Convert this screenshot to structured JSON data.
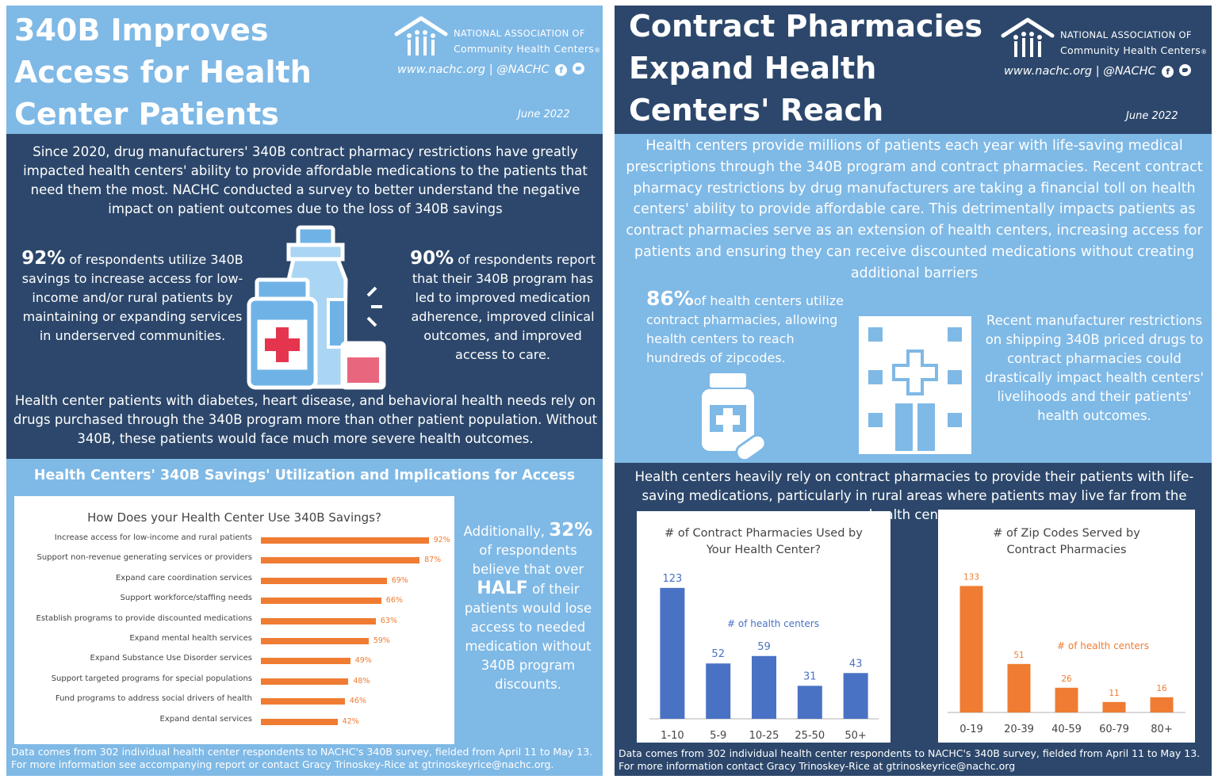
{
  "left": {
    "title_lines": [
      "340B Improves",
      "Access for Health",
      "Center Patients"
    ],
    "logo": {
      "line1": "NATIONAL ASSOCIATION OF",
      "line2": "Community Health Centers",
      "reg": "®"
    },
    "web": "www.nachc.org | @NACHC",
    "date": "June 2022",
    "intro": "Since 2020, drug manufacturers' 340B contract pharmacy restrictions have greatly impacted health centers' ability to provide affordable medications to the patients that need them the most. NACHC conducted a survey to better understand the negative impact on patient outcomes due to the loss of 340B savings",
    "stat1": {
      "num": "92%",
      "text": " of respondents utilize 340B savings to increase access for low-income and/or rural patients by maintaining or expanding services in underserved communities."
    },
    "stat2": {
      "num": "90%",
      "text": " of respondents report that their 340B program has led to improved medication adherence, improved clinical outcomes, and improved access to care."
    },
    "para2": "Health center patients with diabetes, heart disease, and behavioral health needs rely on drugs purchased through the 340B program more than other patient population.  Without 340B, these patients would face much more severe health outcomes.",
    "section_title": "Health Centers' 340B Savings' Utilization and Implications for Access",
    "side": {
      "pre": "Additionally, ",
      "num": "32%",
      "mid": " of respondents believe that over ",
      "half": "HALF",
      "post": " of their patients would lose access to needed medication without 340B program discounts."
    },
    "footnote": "Data comes from 302 individual health center respondents to NACHC's 340B survey, fielded from April 11 to May 13.  For more information see accompanying report or contact Gracy Trinoskey-Rice at gtrinoskeyrice@nachc.org."
  },
  "right": {
    "title_lines": [
      "Contract Pharmacies",
      "Expand Health",
      "Centers' Reach"
    ],
    "logo": {
      "line1": "NATIONAL ASSOCIATION OF",
      "line2": "Community Health Centers",
      "reg": "®"
    },
    "web": "www.nachc.org | @NACHC",
    "date": "June 2022",
    "intro": "Health centers provide millions of patients each year with life-saving medical prescriptions through the 340B program and contract pharmacies. Recent contract pharmacy restrictions by drug manufacturers are taking a financial toll on health centers' ability to provide affordable care.  This detrimentally impacts patients as contract pharmacies serve as an extension of health centers, increasing access for patients and ensuring they can receive discounted medications without creating additional barriers",
    "stat": {
      "num": "86%",
      "text": "of health centers utilize contract pharmacies, allowing health centers to reach hundreds of zipcodes."
    },
    "stat_right": "Recent manufacturer restrictions on shipping 340B priced drugs to contract pharmacies could drastically impact health centers' livelihoods and their patients' health outcomes.",
    "para2": "Health centers heavily rely on contract pharmacies to provide their patients with life-saving medications, particularly in rural areas where patients may live far from the health center.",
    "footnote": "Data comes from 302 individual health center respondents to NACHC's 340B survey, fielded from April 11 to May 13.  For more information contact Gracy Trinoskey-Rice at gtrinoskeyrice@nachc.org"
  },
  "colors": {
    "light_blue": "#7fb9e6",
    "dark_navy": "#2c476b",
    "orange": "#ef7c32",
    "chart_blue": "#4a72c4"
  },
  "chart_data": [
    {
      "type": "bar",
      "orientation": "horizontal",
      "title": "How Does your Health Center Use 340B Savings?",
      "categories": [
        "Increase access for low-income and rural patients",
        "Support non-revenue generating services or providers",
        "Expand care coordination services",
        "Support workforce/staffing needs",
        "Establish programs to provide discounted medications",
        "Expand mental health services",
        "Expand Substance Use Disorder services",
        "Support targeted programs for special populations",
        "Fund programs to address social drivers of health",
        "Expand dental services"
      ],
      "values": [
        92,
        87,
        69,
        66,
        63,
        59,
        49,
        48,
        46,
        42
      ],
      "value_labels": [
        "92%",
        "87%",
        "69%",
        "66%",
        "63%",
        "59%",
        "49%",
        "48%",
        "46%",
        "42%"
      ],
      "xlim": [
        0,
        100
      ],
      "color": "#ef7c32"
    },
    {
      "type": "bar",
      "title": "# of Contract Pharmacies Used by Your Health Center?",
      "annotation": "# of health centers",
      "categories": [
        "1-10",
        "5-9",
        "10-25",
        "25-50",
        "50+"
      ],
      "values": [
        123,
        52,
        59,
        31,
        43
      ],
      "value_labels": [
        "123",
        "52",
        "59",
        "31",
        "43"
      ],
      "ylim": [
        0,
        140
      ],
      "color": "#4a72c4"
    },
    {
      "type": "bar",
      "title": "# of Zip Codes Served by Contract Pharmacies",
      "annotation": "# of health centers",
      "categories": [
        "0-19",
        "20-39",
        "40-59",
        "60-79",
        "80+"
      ],
      "values": [
        133,
        51,
        26,
        11,
        16
      ],
      "value_labels": [
        "133",
        "51",
        "26",
        "11",
        "16"
      ],
      "ylim": [
        0,
        150
      ],
      "color": "#ef7c32"
    }
  ]
}
